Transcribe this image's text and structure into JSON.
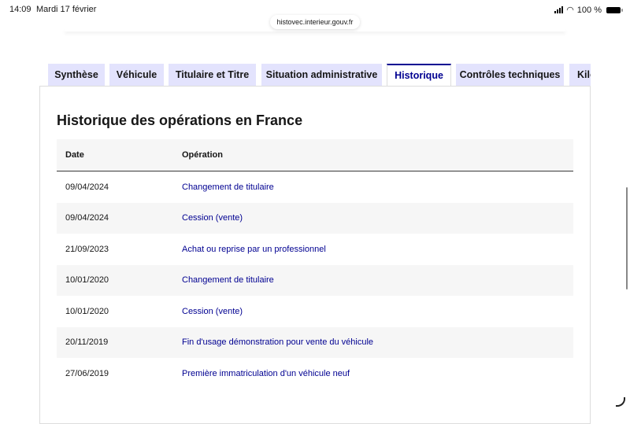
{
  "status_bar": {
    "time": "14:09",
    "date": "Mardi 17 février",
    "battery": "100 %"
  },
  "browser": {
    "url": "histovec.interieur.gouv.fr"
  },
  "tabs": [
    {
      "label": "Synthèse",
      "active": false
    },
    {
      "label": "Véhicule",
      "active": false
    },
    {
      "label": "Titulaire et Titre",
      "active": false
    },
    {
      "label": "Situation administrative",
      "active": false
    },
    {
      "label": "Historique",
      "active": true
    },
    {
      "label": "Contrôles techniques",
      "active": false
    },
    {
      "label": "Kilo",
      "active": false
    }
  ],
  "main": {
    "title": "Historique des opérations en France",
    "table": {
      "headers": [
        "Date",
        "Opération"
      ],
      "rows": [
        [
          "09/04/2024",
          "Changement de titulaire"
        ],
        [
          "09/04/2024",
          "Cession (vente)"
        ],
        [
          "21/09/2023",
          "Achat ou reprise par un professionnel"
        ],
        [
          "10/01/2020",
          "Changement de titulaire"
        ],
        [
          "10/01/2020",
          "Cession (vente)"
        ],
        [
          "20/11/2019",
          "Fin d'usage démonstration pour vente du véhicule"
        ],
        [
          "27/06/2019",
          "Première immatriculation d'un véhicule neuf"
        ]
      ]
    }
  },
  "colors": {
    "accent": "#000091",
    "tab_bg": "#e3e3fd",
    "row_alt": "#f6f6f6"
  }
}
